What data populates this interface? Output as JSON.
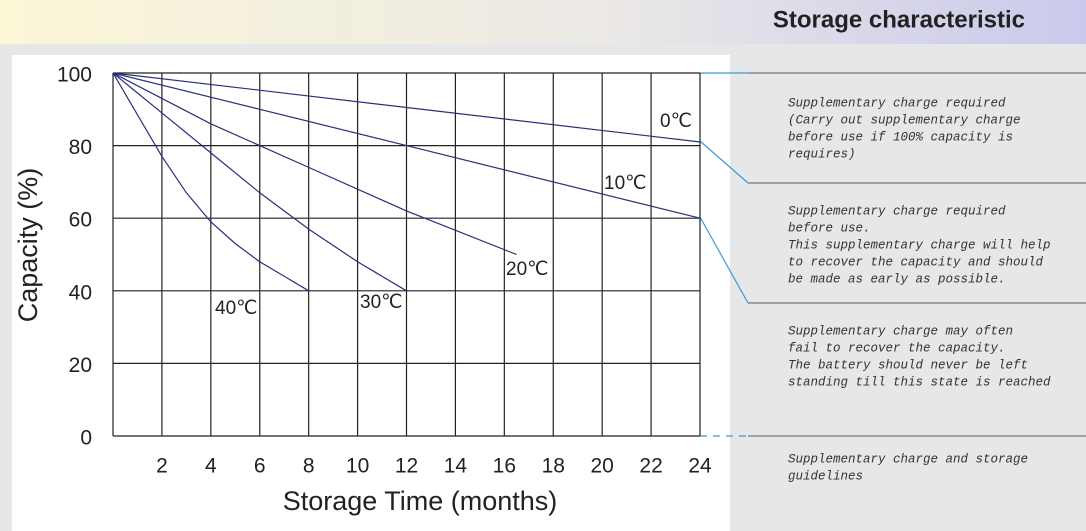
{
  "chart_data": {
    "type": "line",
    "title": "Storage characteristic",
    "x_label": "Storage Time (months)",
    "y_label": "Capacity  (%)",
    "xlim": [
      0,
      24
    ],
    "ylim": [
      0,
      100
    ],
    "xticks": [
      2,
      4,
      6,
      8,
      10,
      12,
      14,
      16,
      18,
      20,
      22,
      24
    ],
    "yticks": [
      0,
      20,
      40,
      60,
      80,
      100
    ],
    "grid": true,
    "series": [
      {
        "name": "0℃",
        "color": "#2b2f7a",
        "x": [
          0,
          24
        ],
        "values": [
          100,
          81
        ]
      },
      {
        "name": "10℃",
        "color": "#2b2f7a",
        "x": [
          0,
          12,
          24
        ],
        "values": [
          100,
          80,
          60
        ]
      },
      {
        "name": "20℃",
        "color": "#2b2f7a",
        "x": [
          0,
          4,
          8,
          12,
          16.5
        ],
        "values": [
          100,
          86,
          74,
          62,
          50
        ]
      },
      {
        "name": "30℃",
        "color": "#2b2f7a",
        "x": [
          0,
          2,
          4,
          6,
          8,
          10,
          12
        ],
        "values": [
          100,
          89,
          78,
          67,
          57,
          48,
          40
        ]
      },
      {
        "name": "40℃",
        "color": "#2b2f7a",
        "x": [
          0,
          2,
          3,
          4,
          5,
          6,
          7,
          8
        ],
        "values": [
          100,
          77,
          67,
          59,
          53,
          48,
          44,
          40
        ]
      }
    ],
    "annotations": [
      {
        "lines": [
          "Supplementary charge required",
          "(Carry out supplementary charge",
          "before use if 100% capacity is",
          "requires)"
        ]
      },
      {
        "lines": [
          "Supplementary charge required",
          "before use.",
          "This supplementary charge will help",
          "to recover the capacity and should",
          "be made  as early as possible."
        ]
      },
      {
        "lines": [
          "Supplementary charge may often",
          "fail to recover the capacity.",
          "The battery should never be left",
          "standing till this state is reached"
        ]
      },
      {
        "lines": [
          "Supplementary charge and storage",
          "guidelines"
        ]
      }
    ]
  }
}
